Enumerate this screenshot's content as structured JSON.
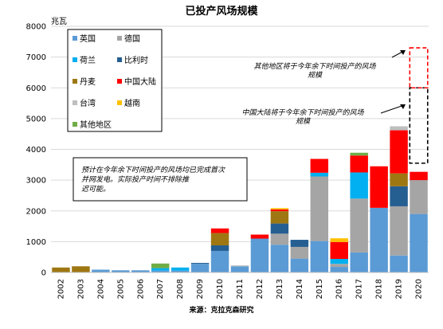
{
  "chart_data": {
    "type": "bar",
    "stacked": true,
    "title": "已投产风场规模",
    "ylabel": "兆瓦",
    "xlabel": "",
    "ylim": [
      0,
      8000
    ],
    "yticks": [
      0,
      1000,
      2000,
      3000,
      4000,
      5000,
      6000,
      7000,
      8000
    ],
    "categories": [
      "2002",
      "2003",
      "2004",
      "2005",
      "2006",
      "2007",
      "2008",
      "2009",
      "2010",
      "2011",
      "2012",
      "2013",
      "2014",
      "2015",
      "2016",
      "2017",
      "2018",
      "2019",
      "2020"
    ],
    "series": [
      {
        "name": "英国",
        "color": "#5b9bd5",
        "values": [
          0,
          0,
          90,
          70,
          70,
          60,
          60,
          280,
          700,
          200,
          1100,
          900,
          450,
          1020,
          180,
          650,
          2100,
          550,
          1900
        ]
      },
      {
        "name": "德国",
        "color": "#a5a5a5",
        "values": [
          0,
          0,
          0,
          0,
          0,
          0,
          0,
          0,
          0,
          0,
          0,
          360,
          380,
          2100,
          100,
          1750,
          0,
          1600,
          1100
        ]
      },
      {
        "name": "荷兰",
        "color": "#00b0f0",
        "values": [
          0,
          0,
          0,
          0,
          0,
          80,
          100,
          0,
          0,
          0,
          0,
          0,
          0,
          120,
          160,
          850,
          0,
          0,
          0
        ]
      },
      {
        "name": "比利时",
        "color": "#255e91",
        "values": [
          0,
          0,
          0,
          0,
          0,
          0,
          0,
          30,
          180,
          0,
          0,
          330,
          230,
          0,
          0,
          0,
          0,
          650,
          0
        ]
      },
      {
        "name": "丹麦",
        "color": "#9e7713",
        "values": [
          160,
          200,
          0,
          0,
          0,
          0,
          0,
          0,
          400,
          0,
          0,
          400,
          0,
          0,
          0,
          0,
          0,
          420,
          0
        ]
      },
      {
        "name": "中国大陆",
        "color": "#ff0000",
        "values": [
          0,
          0,
          0,
          0,
          0,
          0,
          0,
          0,
          150,
          0,
          130,
          60,
          0,
          450,
          550,
          550,
          1350,
          1400,
          270
        ]
      },
      {
        "name": "台湾",
        "color": "#bfbfbf",
        "values": [
          0,
          0,
          0,
          0,
          0,
          0,
          0,
          0,
          0,
          30,
          0,
          0,
          0,
          0,
          0,
          0,
          0,
          130,
          0
        ]
      },
      {
        "name": "越南",
        "color": "#ffc000",
        "values": [
          0,
          0,
          0,
          0,
          0,
          0,
          0,
          0,
          0,
          0,
          0,
          40,
          0,
          0,
          120,
          0,
          0,
          0,
          0
        ]
      },
      {
        "name": "其他地区",
        "color": "#70ad47",
        "values": [
          0,
          0,
          0,
          0,
          0,
          150,
          0,
          0,
          0,
          0,
          0,
          0,
          0,
          0,
          0,
          90,
          0,
          0,
          0
        ]
      }
    ],
    "projected": [
      {
        "category": "2020",
        "series": "中国大陆",
        "from": 3550,
        "to": 6000,
        "color": "#000000"
      },
      {
        "category": "2020",
        "series": "其他地区",
        "from": 6000,
        "to": 7300,
        "color": "#ff0000"
      }
    ],
    "annotations": [
      "其他地区将于今年余下时间投产的风场规模",
      "中国大陆将于今年余下时间投产的风场规模",
      "预计在今年余下时间投产的风场均已完成首次并网发电。实际投产时间不排除推迟可能。"
    ],
    "source": "来源：克拉克森研究",
    "legend_position": "top-left"
  }
}
